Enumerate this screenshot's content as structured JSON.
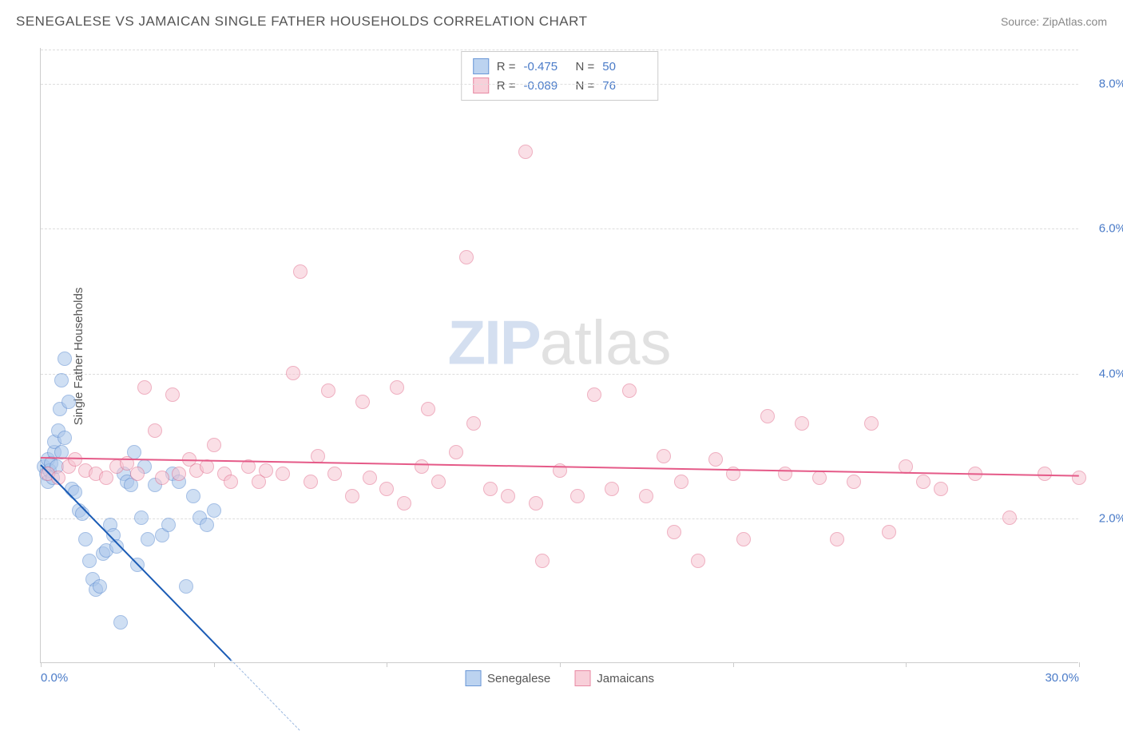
{
  "header": {
    "title": "SENEGALESE VS JAMAICAN SINGLE FATHER HOUSEHOLDS CORRELATION CHART",
    "source": "Source: ZipAtlas.com"
  },
  "ylabel": "Single Father Households",
  "watermark_zip": "ZIP",
  "watermark_rest": "atlas",
  "chart": {
    "type": "scatter",
    "background_color": "#ffffff",
    "grid_color": "#dddddd",
    "axis_color": "#cccccc",
    "tick_label_color": "#4a7bc8",
    "text_color": "#555555",
    "xlim": [
      0,
      30
    ],
    "ylim": [
      0,
      8.5
    ],
    "xticks": [
      0,
      5,
      10,
      15,
      20,
      25,
      30
    ],
    "xtick_labels_shown": {
      "0": "0.0%",
      "30": "30.0%"
    },
    "yticks": [
      2,
      4,
      6,
      8
    ],
    "ytick_labels": [
      "2.0%",
      "4.0%",
      "6.0%",
      "8.0%"
    ],
    "point_radius": 9,
    "point_opacity": 0.55,
    "series": [
      {
        "name": "Senegalese",
        "color_fill": "#a9c5ea",
        "color_stroke": "#5b8bd0",
        "swatch_fill": "#bcd3f0",
        "swatch_border": "#6a97d6",
        "R": "-0.475",
        "N": "50",
        "trend": {
          "x1": 0,
          "y1": 2.75,
          "x2": 5.5,
          "y2": 0.05,
          "color": "#1a5bb5",
          "extend_to_x": 7.5
        },
        "points": [
          [
            0.1,
            2.7
          ],
          [
            0.15,
            2.6
          ],
          [
            0.2,
            2.5
          ],
          [
            0.2,
            2.8
          ],
          [
            0.25,
            2.65
          ],
          [
            0.3,
            2.75
          ],
          [
            0.35,
            2.55
          ],
          [
            0.4,
            2.9
          ],
          [
            0.4,
            3.05
          ],
          [
            0.45,
            2.7
          ],
          [
            0.5,
            3.2
          ],
          [
            0.55,
            3.5
          ],
          [
            0.6,
            3.9
          ],
          [
            0.7,
            4.2
          ],
          [
            0.8,
            3.6
          ],
          [
            0.9,
            2.4
          ],
          [
            1.0,
            2.35
          ],
          [
            1.1,
            2.1
          ],
          [
            1.2,
            2.05
          ],
          [
            1.3,
            1.7
          ],
          [
            1.4,
            1.4
          ],
          [
            1.5,
            1.15
          ],
          [
            1.6,
            1.0
          ],
          [
            1.7,
            1.05
          ],
          [
            1.8,
            1.5
          ],
          [
            1.9,
            1.55
          ],
          [
            2.0,
            1.9
          ],
          [
            2.1,
            1.75
          ],
          [
            2.2,
            1.6
          ],
          [
            2.3,
            0.55
          ],
          [
            2.4,
            2.6
          ],
          [
            2.5,
            2.5
          ],
          [
            2.6,
            2.45
          ],
          [
            2.7,
            2.9
          ],
          [
            2.8,
            1.35
          ],
          [
            2.9,
            2.0
          ],
          [
            3.0,
            2.7
          ],
          [
            3.1,
            1.7
          ],
          [
            3.3,
            2.45
          ],
          [
            3.5,
            1.75
          ],
          [
            3.7,
            1.9
          ],
          [
            3.8,
            2.6
          ],
          [
            4.0,
            2.5
          ],
          [
            4.2,
            1.05
          ],
          [
            4.4,
            2.3
          ],
          [
            4.6,
            2.0
          ],
          [
            4.8,
            1.9
          ],
          [
            5.0,
            2.1
          ],
          [
            0.6,
            2.9
          ],
          [
            0.7,
            3.1
          ]
        ]
      },
      {
        "name": "Jamaicans",
        "color_fill": "#f7c5d2",
        "color_stroke": "#e2708f",
        "swatch_fill": "#f8cfd9",
        "swatch_border": "#e88aa4",
        "R": "-0.089",
        "N": "76",
        "trend": {
          "x1": 0,
          "y1": 2.85,
          "x2": 30,
          "y2": 2.6,
          "color": "#e55a88"
        },
        "points": [
          [
            0.2,
            2.6
          ],
          [
            0.5,
            2.55
          ],
          [
            0.8,
            2.7
          ],
          [
            1.0,
            2.8
          ],
          [
            1.3,
            2.65
          ],
          [
            1.6,
            2.6
          ],
          [
            1.9,
            2.55
          ],
          [
            2.2,
            2.7
          ],
          [
            2.5,
            2.75
          ],
          [
            2.8,
            2.6
          ],
          [
            3.0,
            3.8
          ],
          [
            3.3,
            3.2
          ],
          [
            3.5,
            2.55
          ],
          [
            3.8,
            3.7
          ],
          [
            4.0,
            2.6
          ],
          [
            4.3,
            2.8
          ],
          [
            4.5,
            2.65
          ],
          [
            4.8,
            2.7
          ],
          [
            5.0,
            3.0
          ],
          [
            5.3,
            2.6
          ],
          [
            5.5,
            2.5
          ],
          [
            6.0,
            2.7
          ],
          [
            6.3,
            2.5
          ],
          [
            6.5,
            2.65
          ],
          [
            7.0,
            2.6
          ],
          [
            7.3,
            4.0
          ],
          [
            7.5,
            5.4
          ],
          [
            7.8,
            2.5
          ],
          [
            8.0,
            2.85
          ],
          [
            8.3,
            3.75
          ],
          [
            8.5,
            2.6
          ],
          [
            9.0,
            2.3
          ],
          [
            9.3,
            3.6
          ],
          [
            9.5,
            2.55
          ],
          [
            10.0,
            2.4
          ],
          [
            10.3,
            3.8
          ],
          [
            10.5,
            2.2
          ],
          [
            11.0,
            2.7
          ],
          [
            11.2,
            3.5
          ],
          [
            11.5,
            2.5
          ],
          [
            12.0,
            2.9
          ],
          [
            12.3,
            5.6
          ],
          [
            12.5,
            3.3
          ],
          [
            13.0,
            2.4
          ],
          [
            13.5,
            2.3
          ],
          [
            14.0,
            7.05
          ],
          [
            14.3,
            2.2
          ],
          [
            14.5,
            1.4
          ],
          [
            15.0,
            2.65
          ],
          [
            15.5,
            2.3
          ],
          [
            16.0,
            3.7
          ],
          [
            16.5,
            2.4
          ],
          [
            17.0,
            3.75
          ],
          [
            17.5,
            2.3
          ],
          [
            18.0,
            2.85
          ],
          [
            18.3,
            1.8
          ],
          [
            18.5,
            2.5
          ],
          [
            19.0,
            1.4
          ],
          [
            19.5,
            2.8
          ],
          [
            20.0,
            2.6
          ],
          [
            20.3,
            1.7
          ],
          [
            21.0,
            3.4
          ],
          [
            21.5,
            2.6
          ],
          [
            22.0,
            3.3
          ],
          [
            22.5,
            2.55
          ],
          [
            23.0,
            1.7
          ],
          [
            23.5,
            2.5
          ],
          [
            24.0,
            3.3
          ],
          [
            24.5,
            1.8
          ],
          [
            25.0,
            2.7
          ],
          [
            25.5,
            2.5
          ],
          [
            26.0,
            2.4
          ],
          [
            27.0,
            2.6
          ],
          [
            28.0,
            2.0
          ],
          [
            29.0,
            2.6
          ],
          [
            30.0,
            2.55
          ]
        ]
      }
    ]
  },
  "bottom_legend": [
    {
      "label": "Senegalese",
      "fill": "#bcd3f0",
      "border": "#6a97d6"
    },
    {
      "label": "Jamaicans",
      "fill": "#f8cfd9",
      "border": "#e88aa4"
    }
  ]
}
